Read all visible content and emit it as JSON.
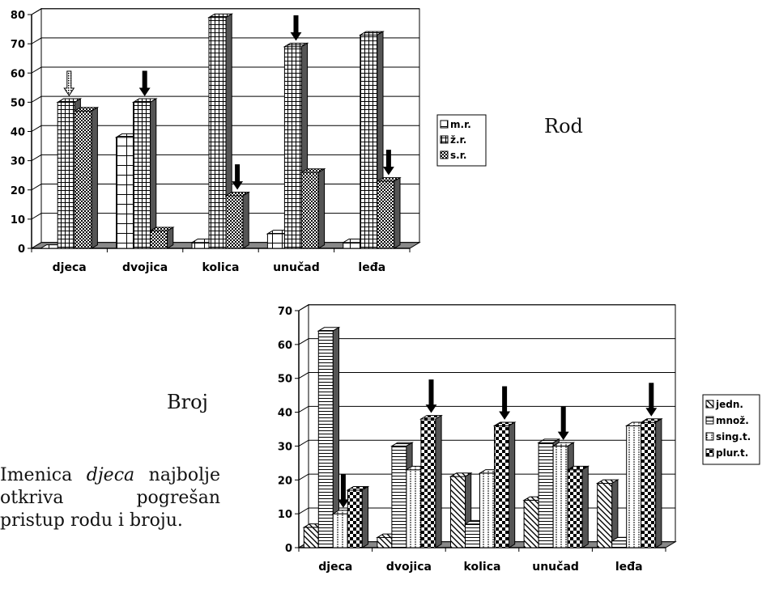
{
  "labels": {
    "rod": "Rod",
    "broj": "Broj"
  },
  "caption": {
    "part1": "Imenica ",
    "emph": "djeca",
    "part2": " najbolje otkriva pogrešan pristup rodu i broju."
  },
  "chart_data": [
    {
      "type": "bar",
      "title": "",
      "categories": [
        "djeca",
        "dvojica",
        "kolica",
        "unučad",
        "leđa"
      ],
      "ylim": [
        0,
        80
      ],
      "yticks": [
        0,
        10,
        20,
        30,
        40,
        50,
        60,
        70,
        80
      ],
      "grid": true,
      "legend_position": "right",
      "series": [
        {
          "name": "m.r.",
          "values": [
            0,
            38,
            2,
            5,
            2
          ]
        },
        {
          "name": "ž.r.",
          "values": [
            50,
            50,
            79,
            69,
            73
          ]
        },
        {
          "name": "s.r.",
          "values": [
            47,
            6,
            18,
            26,
            23
          ]
        }
      ],
      "arrows": [
        {
          "category": "djeca",
          "series": "ž.r."
        },
        {
          "category": "dvojica",
          "series": "ž.r."
        },
        {
          "category": "kolica",
          "series": "s.r."
        },
        {
          "category": "unučad",
          "series": "ž.r."
        },
        {
          "category": "leđa",
          "series": "s.r."
        }
      ]
    },
    {
      "type": "bar",
      "title": "",
      "categories": [
        "djeca",
        "dvojica",
        "kolica",
        "unučad",
        "leđa"
      ],
      "ylim": [
        0,
        70
      ],
      "yticks": [
        0,
        10,
        20,
        30,
        40,
        50,
        60,
        70
      ],
      "grid": true,
      "legend_position": "right",
      "series": [
        {
          "name": "jedn.",
          "values": [
            6,
            3,
            21,
            14,
            19
          ]
        },
        {
          "name": "množ.",
          "values": [
            64,
            30,
            7,
            31,
            2
          ]
        },
        {
          "name": "sing.t.",
          "values": [
            10,
            23,
            22,
            30,
            36
          ]
        },
        {
          "name": "plur.t.",
          "values": [
            17,
            38,
            36,
            23,
            37
          ]
        }
      ],
      "arrows": [
        {
          "category": "djeca",
          "series": "sing.t."
        },
        {
          "category": "dvojica",
          "series": "plur.t."
        },
        {
          "category": "kolica",
          "series": "plur.t."
        },
        {
          "category": "unučad",
          "series": "sing.t."
        },
        {
          "category": "leđa",
          "series": "plur.t."
        }
      ]
    }
  ]
}
